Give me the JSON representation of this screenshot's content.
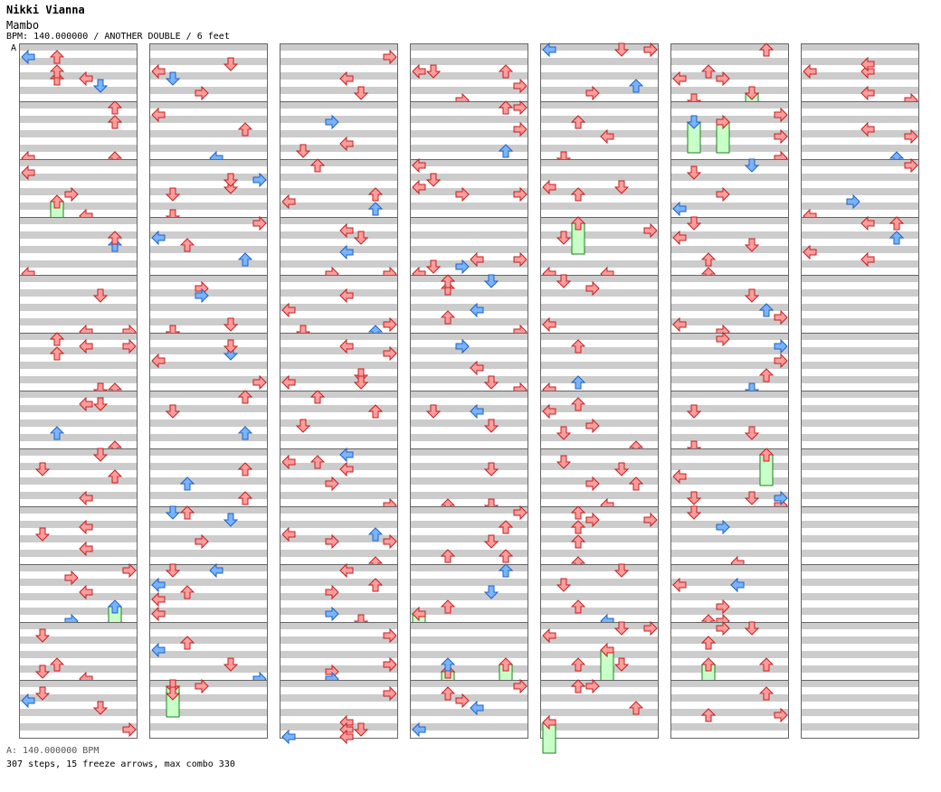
{
  "header": {
    "artist": "Nikki Vianna",
    "song": "Mambo",
    "info": "BPM: 140.000000 / ANOTHER DOUBLE / 6 feet",
    "bpm_marker": "A"
  },
  "footer": {
    "bpm_line": "A: 140.000000 BPM",
    "stats_line": "307 steps, 15 freeze arrows, max combo 330"
  },
  "colors": {
    "normal_arrow": "#ff9c9c",
    "quarter_arrow": "#78b4ff",
    "freeze_body": "#c8ffc8",
    "stripe": "#cccccc",
    "border": "#666666"
  },
  "chart_data": {
    "type": "step-chart",
    "columns": 7,
    "measures_per_column": 12,
    "lanes": 8,
    "lane_directions": [
      "left",
      "down",
      "up",
      "right",
      "left",
      "down",
      "up",
      "right"
    ],
    "notes_per_measure_sample": [
      [
        [
          0,
          0,
          "right"
        ],
        [
          2,
          4,
          "up"
        ],
        [
          3,
          6,
          "up"
        ]
      ],
      [
        [
          5,
          0,
          "left"
        ],
        [
          4,
          2,
          "up"
        ],
        [
          3,
          4,
          "left"
        ]
      ]
    ]
  }
}
